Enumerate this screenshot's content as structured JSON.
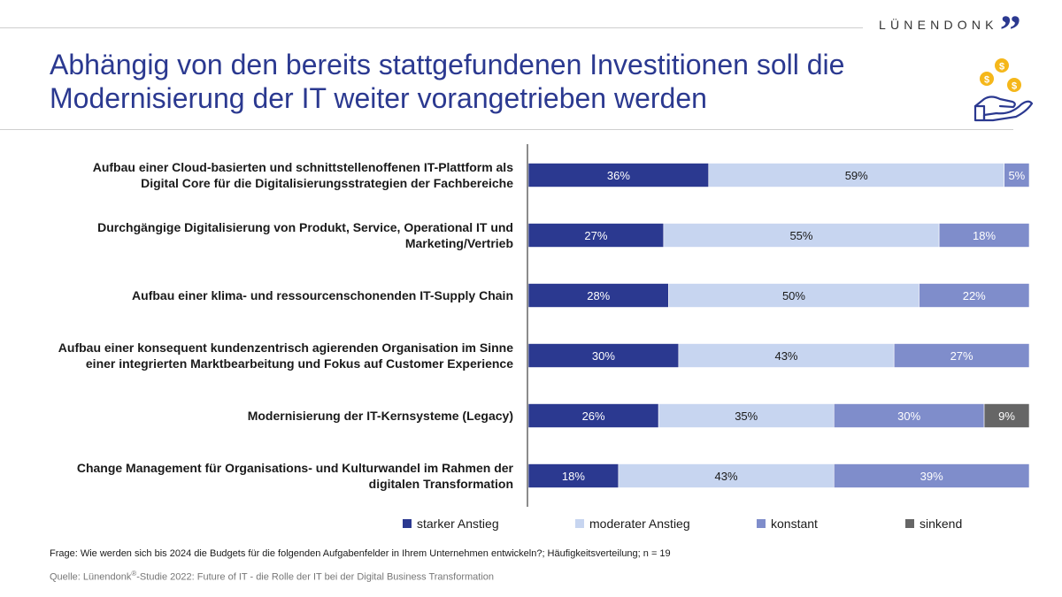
{
  "header": {
    "logo_text": "LÜNENDONK",
    "logo_mark": "”",
    "title_line1": "Abhängig von den bereits stattgefundenen Investitionen soll die",
    "title_line2": "Modernisierung der IT weiter vorangetrieben werden"
  },
  "colors": {
    "title": "#2b3990",
    "starker": "#2b3990",
    "moderater": "#c7d5f0",
    "konstant": "#7f8dcb",
    "sinkend": "#666666",
    "coin": "#f5b71a"
  },
  "chart_data": {
    "type": "bar",
    "orientation": "horizontal-stacked-percent",
    "categories": [
      [
        "Aufbau einer Cloud-basierten und schnittstellenoffenen IT-Plattform als",
        "Digital Core für die Digitalisierungsstrategien der Fachbereiche"
      ],
      [
        "Durchgängige Digitalisierung von Produkt, Service, Operational IT und",
        "Marketing/Vertrieb"
      ],
      [
        "Aufbau einer klima- und ressourcenschonenden IT-Supply Chain"
      ],
      [
        "Aufbau einer konsequent kundenzentrisch agierenden Organisation im Sinne",
        "einer integrierten Marktbearbeitung und Fokus auf Customer Experience"
      ],
      [
        "Modernisierung der IT-Kernsysteme (Legacy)"
      ],
      [
        "Change Management für Organisations- und Kulturwandel im Rahmen der",
        "digitalen Transformation"
      ]
    ],
    "series": [
      {
        "name": "starker Anstieg",
        "color": "#2b3990",
        "label_color": "#ffffff",
        "values": [
          36,
          27,
          28,
          30,
          26,
          18
        ]
      },
      {
        "name": "moderater Anstieg",
        "color": "#c7d5f0",
        "label_color": "#1a1a1a",
        "values": [
          59,
          55,
          50,
          43,
          35,
          43
        ]
      },
      {
        "name": "konstant",
        "color": "#7f8dcb",
        "label_color": "#ffffff",
        "values": [
          5,
          18,
          22,
          27,
          30,
          39
        ]
      },
      {
        "name": "sinkend",
        "color": "#666666",
        "label_color": "#ffffff",
        "values": [
          0,
          0,
          0,
          0,
          9,
          0
        ]
      }
    ],
    "value_suffix": "%",
    "xlim": [
      0,
      100
    ],
    "legend_position": "bottom"
  },
  "footer": {
    "question": "Frage: Wie werden sich bis 2024 die Budgets für die folgenden Aufgabenfelder in Ihrem Unternehmen entwickeln?; Häufigkeitsverteilung; n = 19",
    "source_prefix": "Quelle: Lünendonk",
    "source_reg": "®",
    "source_suffix": "-Studie 2022: Future of IT - die Rolle der IT bei der Digital Business Transformation"
  }
}
